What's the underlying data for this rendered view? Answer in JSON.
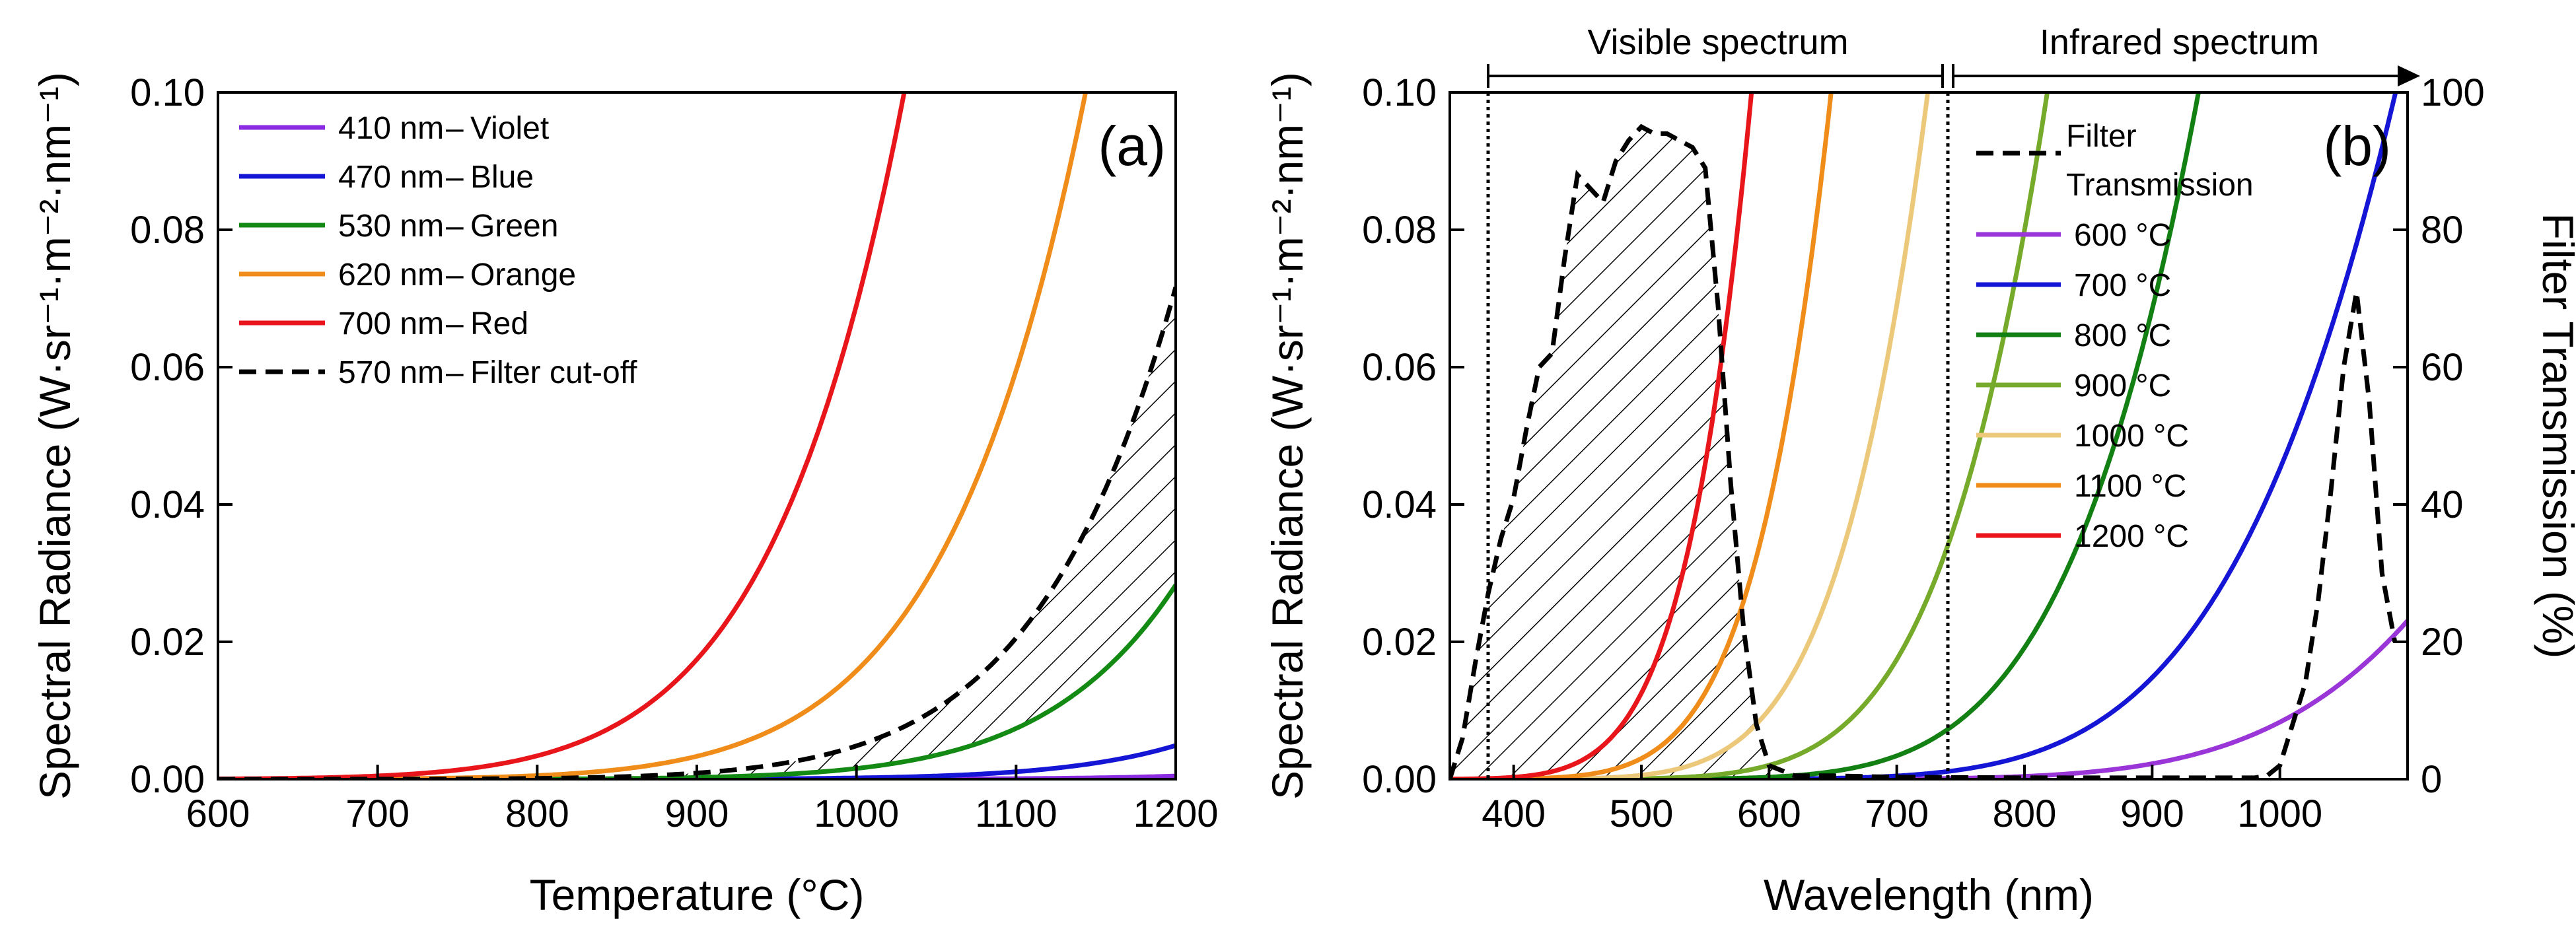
{
  "chart_data": [
    {
      "type": "line",
      "panel_label": "(a)",
      "xlabel": "Temperature (°C)",
      "ylabel": "Spectral Radiance (W·sr⁻¹·m⁻²·nm⁻¹)",
      "xlim": [
        600,
        1200
      ],
      "ylim": [
        0,
        0.1
      ],
      "x_ticks": [
        "600",
        "700",
        "800",
        "900",
        "1000",
        "1100",
        "1200"
      ],
      "y_ticks": [
        "0.00",
        "0.02",
        "0.04",
        "0.06",
        "0.08",
        "0.10"
      ],
      "legend_position": "top-left",
      "series": [
        {
          "name": "410 nm",
          "label": "Violet",
          "wavelength_nm": 410,
          "color": "#8a2be2",
          "dash": false
        },
        {
          "name": "470 nm",
          "label": "Blue",
          "wavelength_nm": 470,
          "color": "#1515d6",
          "dash": false
        },
        {
          "name": "530 nm",
          "label": "Green",
          "wavelength_nm": 530,
          "color": "#138a13",
          "dash": false
        },
        {
          "name": "620 nm",
          "label": "Orange",
          "wavelength_nm": 620,
          "color": "#f08c1a",
          "dash": false
        },
        {
          "name": "700 nm",
          "label": "Red",
          "wavelength_nm": 700,
          "color": "#e8151b",
          "dash": false
        },
        {
          "name": "570 nm",
          "label": "Filter cut-off",
          "wavelength_nm": 570,
          "color": "#000000",
          "dash": true
        }
      ],
      "hatched_region": "between 530 nm curve and 570 nm filter cut-off curve"
    },
    {
      "type": "line",
      "panel_label": "(b)",
      "xlabel": "Wavelength (nm)",
      "ylabel": "Spectral Radiance (W·sr⁻¹·m⁻²·nm⁻¹)",
      "y2label": "Filter Transmission (%)",
      "xlim": [
        350,
        1100
      ],
      "ylim": [
        0,
        0.1
      ],
      "y2lim": [
        0,
        100
      ],
      "x_ticks": [
        "400",
        "500",
        "600",
        "700",
        "800",
        "900",
        "1000"
      ],
      "y_ticks": [
        "0.00",
        "0.02",
        "0.04",
        "0.06",
        "0.08",
        "0.10"
      ],
      "y2_ticks": [
        "0",
        "20",
        "40",
        "60",
        "80",
        "100"
      ],
      "legend_position": "top-middle",
      "spectrum_bands": [
        {
          "label": "Visible spectrum",
          "from_nm": 380,
          "to_nm": 740
        },
        {
          "label": "Infrared spectrum",
          "from_nm": 740,
          "to_nm": 1100
        }
      ],
      "filter_legend_label": "Filter",
      "filter_legend_label2": "Transmission",
      "filter_transmission": {
        "x": [
          350,
          360,
          370,
          380,
          390,
          400,
          410,
          420,
          430,
          440,
          450,
          460,
          470,
          480,
          490,
          500,
          510,
          520,
          530,
          540,
          550,
          560,
          570,
          580,
          590,
          600,
          620,
          650,
          700,
          800,
          900,
          980,
          990,
          1000,
          1010,
          1020,
          1030,
          1040,
          1050,
          1060,
          1070,
          1080,
          1090
        ],
        "y": [
          0,
          6,
          17,
          27,
          35,
          41,
          51,
          60,
          62,
          76,
          88,
          86,
          84,
          90,
          93,
          95,
          94,
          94,
          93,
          92,
          89,
          69,
          43,
          22,
          8,
          2,
          0.5,
          0.5,
          0.3,
          0.2,
          0.2,
          0.2,
          0.5,
          2,
          8,
          14,
          26,
          42,
          60,
          71,
          55,
          30,
          20
        ]
      },
      "series": [
        {
          "name": "600 °C",
          "temperature_c": 600,
          "color": "#9a35d8"
        },
        {
          "name": "700 °C",
          "temperature_c": 700,
          "color": "#1515d6"
        },
        {
          "name": "800 °C",
          "temperature_c": 800,
          "color": "#138013"
        },
        {
          "name": "900 °C",
          "temperature_c": 900,
          "color": "#76aa2a"
        },
        {
          "name": "1000 °C",
          "temperature_c": 1000,
          "color": "#ecc97a"
        },
        {
          "name": "1100 °C",
          "temperature_c": 1100,
          "color": "#f08c1a"
        },
        {
          "name": "1200 °C",
          "temperature_c": 1200,
          "color": "#e8151b"
        }
      ]
    }
  ]
}
